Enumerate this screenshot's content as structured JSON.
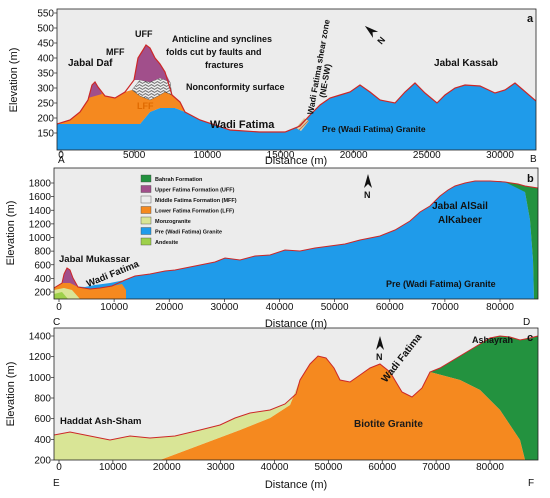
{
  "colors": {
    "frame_bg": "#ececec",
    "granite_pre": "#1f9bea",
    "lff": "#f5891f",
    "mff": "#ececec",
    "uff": "#a14f8b",
    "monzogranite": "#d9e596",
    "andesite": "#9ed04a",
    "bahrah": "#23923f",
    "biotite": "#f5891f",
    "profile_line": "#cc2727"
  },
  "panels": [
    {
      "id": "a",
      "panel_letter": "a",
      "y_axis_label": "Elevation (m)",
      "x_axis_label": "Distance (m)",
      "y_ticks": [
        "550",
        "500",
        "450",
        "400",
        "350",
        "300",
        "250",
        "200",
        "150"
      ],
      "x_ticks": [
        "0",
        "5000",
        "10000",
        "15000",
        "20000",
        "25000",
        "30000"
      ],
      "start_point": "A",
      "end_point": "B",
      "labels": {
        "jabal_daf": "Jabal Daf",
        "mff": "MFF",
        "uff": "UFF",
        "folds_1": "Anticline and synclines",
        "folds_2": "folds cut by faults and",
        "folds_3": "fractures",
        "nonconformity": "Nonconformity surface",
        "lff": "LFF",
        "wadi_fatima": "Wadi Fatima",
        "shear_1": "Wadi Fatima shear zone",
        "shear_2": "(NE-SW)",
        "pre_granite": "Pre (Wadi Fatima) Granite",
        "jabal_kassab": "Jabal Kassab"
      }
    },
    {
      "id": "b",
      "panel_letter": "b",
      "y_axis_label": "Elevation (m)",
      "x_axis_label": "Distance (m)",
      "y_ticks": [
        "1800",
        "1600",
        "1400",
        "1200",
        "1000",
        "800",
        "600",
        "400",
        "200"
      ],
      "x_ticks": [
        "0",
        "10000",
        "20000",
        "30000",
        "40000",
        "50000",
        "60000",
        "70000",
        "80000"
      ],
      "start_point": "C",
      "end_point": "D",
      "labels": {
        "jabal_mukassar": "Jabal Mukassar",
        "wadi_fatima": "Wadi Fatima",
        "jabal_alsail_1": "Jabal AlSail",
        "jabal_alsail_2": "AlKabeer",
        "pre_granite": "Pre (Wadi Fatima) Granite"
      },
      "legend": [
        {
          "label": "Bahrah Formation",
          "color": "#23923f"
        },
        {
          "label": "Upper Fatima Formation (UFF)",
          "color": "#a14f8b"
        },
        {
          "label": "Middle Fatima Formation (MFF)",
          "color": "#ececec"
        },
        {
          "label": "Lower Fatima Formation (LFF)",
          "color": "#f5891f"
        },
        {
          "label": "Monzogranite",
          "color": "#d9e596"
        },
        {
          "label": "Pre (Wadi Fatima) Granite",
          "color": "#1f9bea"
        },
        {
          "label": "Andesite",
          "color": "#9ed04a"
        }
      ]
    },
    {
      "id": "c",
      "panel_letter": "c",
      "y_axis_label": "Elevation (m)",
      "x_axis_label": "Distance (m)",
      "y_ticks": [
        "1400",
        "1200",
        "1000",
        "800",
        "600",
        "400",
        "200"
      ],
      "x_ticks": [
        "0",
        "10000",
        "20000",
        "30000",
        "40000",
        "50000",
        "60000",
        "70000",
        "80000"
      ],
      "start_point": "E",
      "end_point": "F",
      "labels": {
        "haddat": "Haddat Ash-Sham",
        "ashayrah": "Ashayrah",
        "wadi_fatima": "Wadi Fatima",
        "biotite": "Biotite  Granite"
      }
    }
  ]
}
